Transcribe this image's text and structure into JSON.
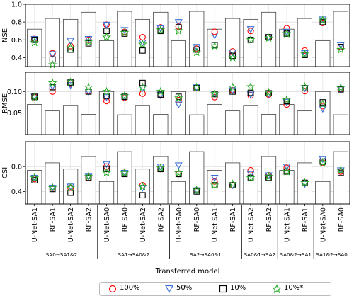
{
  "x_axis_title": "Transferred model",
  "legend": [
    {
      "label": "100%",
      "marker": "circle",
      "color": "#ff0000"
    },
    {
      "label": "50%",
      "marker": "triangle-down",
      "color": "#3b6fd8"
    },
    {
      "label": "10%",
      "marker": "square",
      "color": "#000000"
    },
    {
      "label": "10%*",
      "marker": "star",
      "color": "#22aa22"
    }
  ],
  "chart_data": {
    "type": "bar",
    "categories": [
      "U-Net-SA1",
      "RF-SA1",
      "U-Net-SA2",
      "RF-SA2",
      "U-Net-SA0",
      "RF-SA0",
      "U-Net-SA2",
      "RF-SA2",
      "U-Net-SA0",
      "RF-SA0",
      "U-Net-SA1",
      "RF-SA1",
      "U-Net-SA2",
      "RF-SA2",
      "U-Net-SA1",
      "RF-SA1",
      "U-Net-SA0",
      "RF-SA0"
    ],
    "groups": [
      {
        "label": "SA0→SA1&2",
        "categories": [
          0,
          3
        ]
      },
      {
        "label": "SA1→SA0&2",
        "categories": [
          4,
          7
        ]
      },
      {
        "label": "SA2→SA0&1",
        "categories": [
          8,
          11
        ]
      },
      {
        "label": "SA0&1→SA2",
        "categories": [
          12,
          13
        ]
      },
      {
        "label": "SA0&2→SA1",
        "categories": [
          14,
          15
        ]
      },
      {
        "label": "SA1&2→SA0",
        "categories": [
          16,
          17
        ]
      }
    ],
    "panels": [
      {
        "ylabel": "NSE",
        "ylim": [
          0.3,
          1.0
        ],
        "yticks": [
          0.4,
          0.6,
          0.8,
          1.0
        ],
        "bars": [
          0.72,
          0.84,
          0.83,
          0.91,
          0.59,
          0.92,
          0.83,
          0.91,
          0.59,
          0.92,
          0.72,
          0.84,
          0.83,
          0.91,
          0.72,
          0.84,
          0.59,
          0.92
        ],
        "series": [
          {
            "name": "100%",
            "values": [
              0.61,
              0.45,
              0.53,
              0.6,
              0.77,
              0.69,
              0.63,
              0.74,
              0.75,
              0.5,
              0.69,
              0.47,
              0.7,
              0.63,
              0.73,
              0.48,
              0.79,
              0.52
            ]
          },
          {
            "name": "50%",
            "values": [
              0.61,
              0.44,
              0.59,
              0.61,
              0.77,
              0.71,
              0.57,
              0.73,
              0.8,
              0.52,
              0.65,
              0.46,
              0.72,
              0.63,
              0.69,
              0.45,
              0.83,
              0.54
            ]
          },
          {
            "name": "10%",
            "values": [
              0.6,
              0.38,
              0.49,
              0.56,
              0.7,
              0.67,
              0.48,
              0.7,
              0.74,
              0.49,
              0.54,
              0.42,
              0.6,
              0.63,
              0.67,
              0.43,
              0.8,
              0.52
            ]
          },
          {
            "name": "10%*",
            "values": [
              0.57,
              0.32,
              0.51,
              0.58,
              0.63,
              0.68,
              0.55,
              0.71,
              0.7,
              0.46,
              0.53,
              0.4,
              0.6,
              0.62,
              0.67,
              0.44,
              0.82,
              0.49
            ]
          }
        ]
      },
      {
        "ylabel": "RMSE",
        "ylim": [
          0.0,
          0.145
        ],
        "yticks": [
          0.05,
          0.1
        ],
        "bars": [
          0.07,
          0.055,
          0.068,
          0.047,
          0.1,
          0.046,
          0.068,
          0.047,
          0.1,
          0.046,
          0.07,
          0.055,
          0.068,
          0.047,
          0.07,
          0.055,
          0.1,
          0.046
        ],
        "series": [
          {
            "name": "100%",
            "values": [
              0.087,
              0.1,
              0.118,
              0.1,
              0.078,
              0.086,
              0.095,
              0.091,
              0.08,
              0.108,
              0.087,
              0.103,
              0.091,
              0.093,
              0.07,
              0.101,
              0.066,
              0.105
            ]
          },
          {
            "name": "50%",
            "values": [
              0.088,
              0.112,
              0.115,
              0.1,
              0.087,
              0.087,
              0.108,
              0.092,
              0.07,
              0.11,
              0.095,
              0.103,
              0.093,
              0.095,
              0.076,
              0.108,
              0.06,
              0.105
            ]
          },
          {
            "name": "10%",
            "values": [
              0.088,
              0.11,
              0.121,
              0.1,
              0.09,
              0.088,
              0.12,
              0.093,
              0.088,
              0.108,
              0.094,
              0.1,
              0.097,
              0.096,
              0.078,
              0.108,
              0.075,
              0.105
            ]
          },
          {
            "name": "10%*",
            "values": [
              0.087,
              0.12,
              0.122,
              0.11,
              0.1,
              0.09,
              0.11,
              0.1,
              0.085,
              0.11,
              0.095,
              0.11,
              0.111,
              0.098,
              0.081,
              0.111,
              0.071,
              0.109
            ]
          }
        ]
      },
      {
        "ylabel": "CSI",
        "ylim": [
          0.3,
          0.8
        ],
        "yticks": [
          0.4,
          0.6
        ],
        "bars": [
          0.57,
          0.63,
          0.58,
          0.68,
          0.48,
          0.72,
          0.58,
          0.68,
          0.48,
          0.72,
          0.57,
          0.63,
          0.58,
          0.68,
          0.57,
          0.63,
          0.48,
          0.72
        ],
        "series": [
          {
            "name": "100%",
            "values": [
              0.5,
              0.43,
              0.43,
              0.51,
              0.6,
              0.55,
              0.45,
              0.58,
              0.54,
              0.41,
              0.48,
              0.45,
              0.57,
              0.53,
              0.59,
              0.47,
              0.63,
              0.56
            ]
          },
          {
            "name": "50%",
            "values": [
              0.51,
              0.43,
              0.44,
              0.52,
              0.62,
              0.55,
              0.43,
              0.6,
              0.61,
              0.41,
              0.51,
              0.45,
              0.54,
              0.53,
              0.6,
              0.46,
              0.66,
              0.57
            ]
          },
          {
            "name": "10%",
            "values": [
              0.49,
              0.42,
              0.39,
              0.51,
              0.58,
              0.54,
              0.37,
              0.58,
              0.54,
              0.4,
              0.45,
              0.45,
              0.51,
              0.51,
              0.56,
              0.47,
              0.64,
              0.55
            ]
          },
          {
            "name": "10%*",
            "values": [
              0.51,
              0.43,
              0.43,
              0.52,
              0.55,
              0.55,
              0.44,
              0.59,
              0.55,
              0.41,
              0.45,
              0.46,
              0.51,
              0.52,
              0.56,
              0.47,
              0.63,
              0.57
            ]
          }
        ]
      }
    ]
  }
}
